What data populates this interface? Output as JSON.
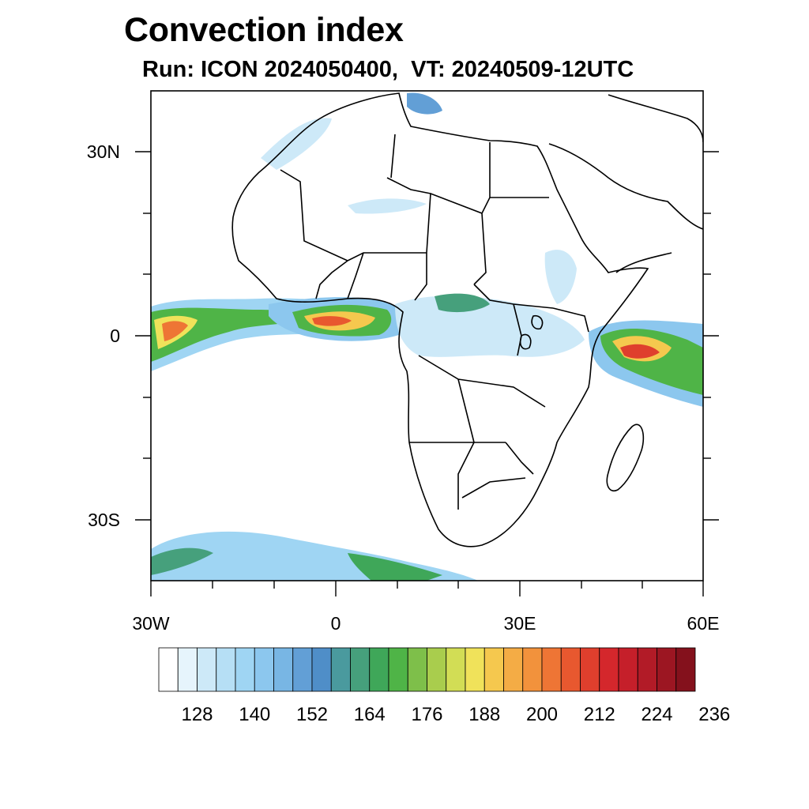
{
  "title": "Convection index",
  "subtitle": "Run: ICON 2024050400,  VT: 20240509-12UTC",
  "axes": {
    "lon_labels": [
      "30W",
      "0",
      "30E",
      "60E"
    ],
    "lat_labels": [
      "30N",
      "0",
      "30S"
    ],
    "lon_range": [
      -30,
      60
    ],
    "lat_range": [
      -40,
      40
    ]
  },
  "colorbar": {
    "labels": [
      "128",
      "140",
      "152",
      "164",
      "176",
      "188",
      "200",
      "212",
      "224",
      "236"
    ],
    "colors": [
      "#ffffff",
      "#e6f4fc",
      "#cde9f8",
      "#b6dff5",
      "#9fd5f3",
      "#8cc7ee",
      "#78b6e4",
      "#629fd6",
      "#4f8ec8",
      "#4a9a9e",
      "#46a07c",
      "#3fa759",
      "#4fb447",
      "#7ebf4a",
      "#a9cd4d",
      "#d2dd55",
      "#f0e25a",
      "#f5c84e",
      "#f4ac45",
      "#f2923c",
      "#ee7535",
      "#e8582f",
      "#df3f2d",
      "#d4272c",
      "#c51f2a",
      "#b21b27",
      "#9c1622",
      "#84111c"
    ]
  }
}
